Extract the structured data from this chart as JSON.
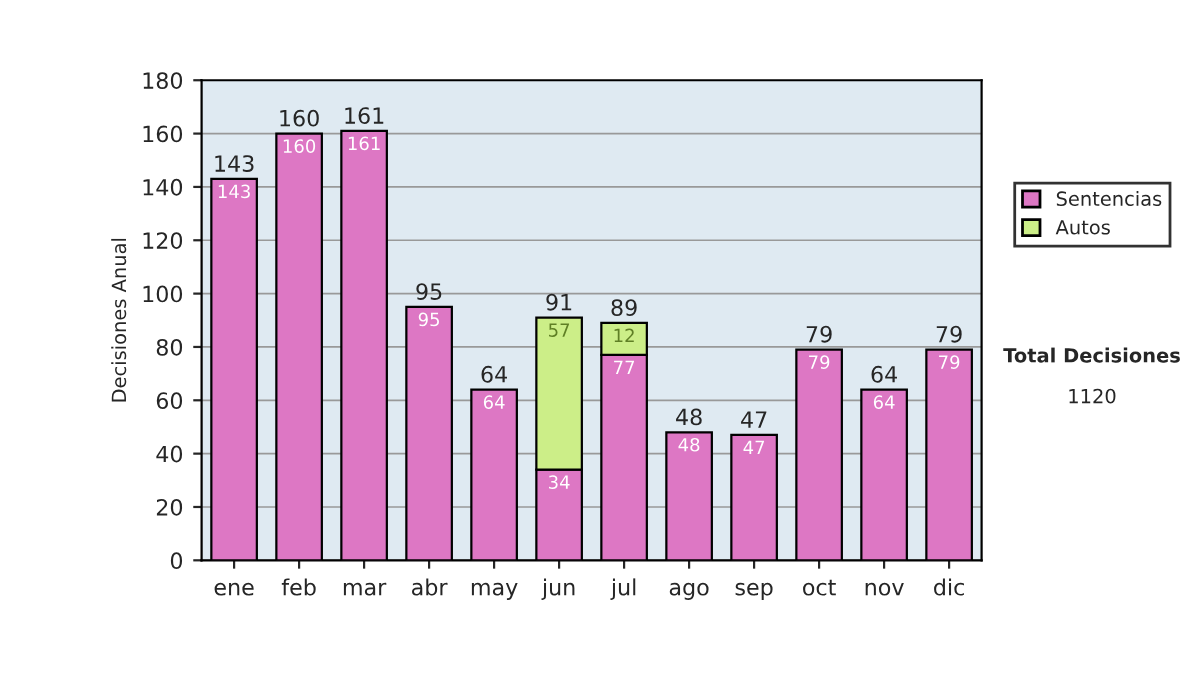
{
  "chart_data": {
    "type": "bar",
    "stacked": true,
    "ylabel": "Decisiones Anual",
    "categories": [
      "ene",
      "feb",
      "mar",
      "abr",
      "may",
      "jun",
      "jul",
      "ago",
      "sep",
      "oct",
      "nov",
      "dic"
    ],
    "series": [
      {
        "name": "Sentencias",
        "color": "#dd77c4",
        "values": [
          143,
          160,
          161,
          95,
          64,
          34,
          77,
          48,
          47,
          79,
          64,
          79
        ],
        "value_labels": [
          "143",
          "160",
          "161",
          "95",
          "64",
          "34",
          "77",
          "48",
          "47",
          "79",
          "64",
          "79"
        ]
      },
      {
        "name": "Autos",
        "color": "#ccee88",
        "values": [
          null,
          null,
          null,
          null,
          null,
          57,
          12,
          null,
          null,
          null,
          null,
          null
        ],
        "value_labels": [
          null,
          null,
          null,
          null,
          null,
          "57",
          "12",
          null,
          null,
          null,
          null,
          null
        ]
      }
    ],
    "totals": [
      "143",
      "160",
      "161",
      "95",
      "64",
      "91",
      "89",
      "48",
      "47",
      "79",
      "64",
      "79"
    ],
    "ylim": [
      0,
      180
    ],
    "yticks": [
      0,
      20,
      40,
      60,
      80,
      100,
      120,
      140,
      160,
      180
    ],
    "grid": "y",
    "legend": "right",
    "annotations": [
      "Total Decisiones",
      "1120"
    ]
  }
}
